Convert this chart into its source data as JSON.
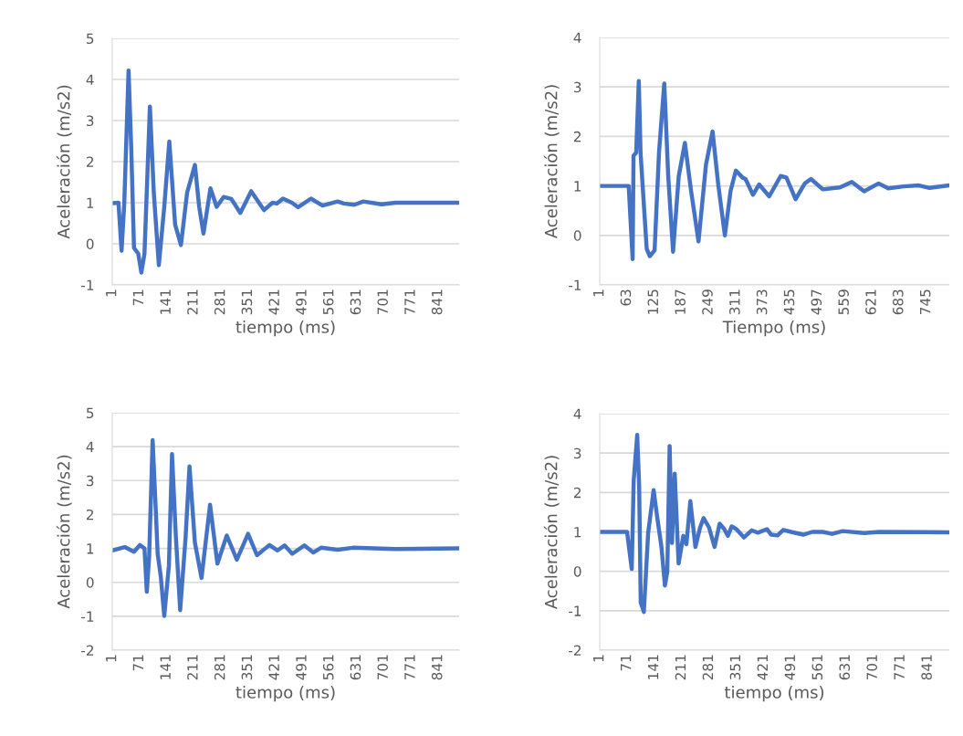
{
  "chart_data": [
    {
      "type": "line",
      "xlabel": "tiempo (ms)",
      "ylabel": "Aceleración (m/s2)",
      "xlim": [
        1,
        895
      ],
      "xticks": [
        1,
        71,
        141,
        211,
        281,
        351,
        421,
        491,
        561,
        631,
        701,
        771,
        841
      ],
      "ylim": [
        -1,
        5
      ],
      "yticks": [
        -1,
        0,
        1,
        2,
        3,
        4,
        5
      ],
      "grid": "y",
      "series": [
        {
          "color": "#4472c4",
          "x": [
            1,
            17,
            25,
            32,
            43,
            50,
            57,
            68,
            76,
            84,
            98,
            108,
            121,
            135,
            148,
            163,
            178,
            194,
            214,
            225,
            236,
            254,
            270,
            288,
            308,
            331,
            359,
            392,
            414,
            425,
            441,
            464,
            480,
            513,
            543,
            582,
            598,
            625,
            648,
            695,
            731,
            810,
            894
          ],
          "values": [
            0.99,
            1.0,
            -0.17,
            1.0,
            4.22,
            2.3,
            -0.1,
            -0.24,
            -0.7,
            -0.24,
            3.34,
            1.25,
            -0.52,
            0.9,
            2.49,
            0.47,
            -0.03,
            1.25,
            1.92,
            0.9,
            0.25,
            1.35,
            0.9,
            1.14,
            1.09,
            0.75,
            1.28,
            0.82,
            1.0,
            0.98,
            1.1,
            1.0,
            0.89,
            1.1,
            0.93,
            1.03,
            0.98,
            0.95,
            1.03,
            0.96,
            1.0,
            1.0,
            1.0
          ]
        }
      ]
    },
    {
      "type": "line",
      "xlabel": "Tiempo (ms)",
      "ylabel": "Aceleración (m/s2)",
      "xlim": [
        1,
        797
      ],
      "xticks": [
        1,
        63,
        125,
        187,
        249,
        311,
        373,
        435,
        497,
        559,
        621,
        683,
        745
      ],
      "ylim": [
        -1,
        4
      ],
      "yticks": [
        -1,
        0,
        1,
        2,
        3,
        4
      ],
      "grid": "y",
      "series": [
        {
          "color": "#4472c4",
          "x": [
            1,
            67,
            76,
            78,
            84,
            90,
            94,
            108,
            115,
            126,
            136,
            148,
            157,
            168,
            181,
            195,
            209,
            226,
            243,
            258,
            271,
            286,
            299,
            311,
            326,
            333,
            350,
            364,
            387,
            413,
            426,
            447,
            468,
            482,
            509,
            548,
            575,
            603,
            636,
            658,
            693,
            728,
            752,
            797
          ],
          "values": [
            1.0,
            1.0,
            -0.48,
            1.61,
            1.67,
            3.12,
            1.67,
            -0.27,
            -0.42,
            -0.3,
            1.67,
            3.07,
            1.2,
            -0.33,
            1.2,
            1.87,
            0.9,
            -0.12,
            1.43,
            2.1,
            1.02,
            0.0,
            0.9,
            1.31,
            1.17,
            1.14,
            0.82,
            1.03,
            0.79,
            1.2,
            1.17,
            0.73,
            1.05,
            1.14,
            0.93,
            0.97,
            1.08,
            0.89,
            1.05,
            0.95,
            0.99,
            1.01,
            0.96,
            1.01
          ]
        }
      ]
    },
    {
      "type": "line",
      "xlabel": "tiempo (ms)",
      "ylabel": "Aceleración (m/s2)",
      "xlim": [
        1,
        895
      ],
      "xticks": [
        1,
        71,
        141,
        211,
        281,
        351,
        421,
        491,
        561,
        631,
        701,
        771,
        841
      ],
      "ylim": [
        -2,
        5
      ],
      "yticks": [
        -2,
        -1,
        0,
        1,
        2,
        3,
        4,
        5
      ],
      "grid": "y",
      "series": [
        {
          "color": "#4472c4",
          "x": [
            1,
            33,
            57,
            72,
            84,
            90,
            96,
            105,
            113,
            118,
            126,
            135,
            147,
            155,
            165,
            176,
            190,
            200,
            214,
            231,
            253,
            272,
            296,
            322,
            351,
            374,
            406,
            427,
            445,
            465,
            496,
            519,
            539,
            582,
            621,
            731,
            894
          ],
          "values": [
            0.94,
            1.04,
            0.9,
            1.1,
            1.0,
            -0.28,
            0.75,
            4.19,
            2.16,
            0.84,
            0.17,
            -0.99,
            0.5,
            3.78,
            1.33,
            -0.82,
            1.33,
            3.42,
            1.17,
            0.13,
            2.29,
            0.55,
            1.38,
            0.67,
            1.43,
            0.8,
            1.1,
            0.94,
            1.09,
            0.84,
            1.09,
            0.88,
            1.02,
            0.96,
            1.02,
            0.98,
            1.0
          ]
        }
      ]
    },
    {
      "type": "line",
      "xlabel": "tiempo (ms)",
      "ylabel": "Aceleración (m/s2)",
      "xlim": [
        1,
        896
      ],
      "xticks": [
        1,
        71,
        141,
        211,
        281,
        351,
        421,
        491,
        561,
        631,
        701,
        771,
        841
      ],
      "ylim": [
        -2,
        4
      ],
      "yticks": [
        -2,
        -1,
        0,
        1,
        2,
        3,
        4
      ],
      "grid": "y",
      "series": [
        {
          "color": "#4472c4",
          "x": [
            1,
            71,
            83,
            88,
            97,
            102,
            106,
            114,
            125,
            139,
            147,
            159,
            168,
            174,
            180,
            186,
            193,
            203,
            215,
            223,
            233,
            246,
            258,
            267,
            281,
            295,
            308,
            320,
            329,
            339,
            351,
            370,
            390,
            406,
            429,
            440,
            456,
            471,
            491,
            522,
            545,
            572,
            596,
            623,
            678,
            716,
            896
          ],
          "values": [
            1.0,
            1.0,
            0.06,
            2.3,
            3.46,
            2.16,
            -0.79,
            -1.03,
            0.97,
            2.06,
            1.46,
            0.62,
            -0.36,
            -0.01,
            3.18,
            0.72,
            2.48,
            0.2,
            0.9,
            0.69,
            1.78,
            0.62,
            1.11,
            1.35,
            1.11,
            0.62,
            1.21,
            1.07,
            0.9,
            1.14,
            1.07,
            0.86,
            1.04,
            0.98,
            1.07,
            0.93,
            0.91,
            1.05,
            1.0,
            0.93,
            1.0,
            1.0,
            0.95,
            1.02,
            0.97,
            1.0,
            0.99
          ]
        }
      ]
    }
  ]
}
